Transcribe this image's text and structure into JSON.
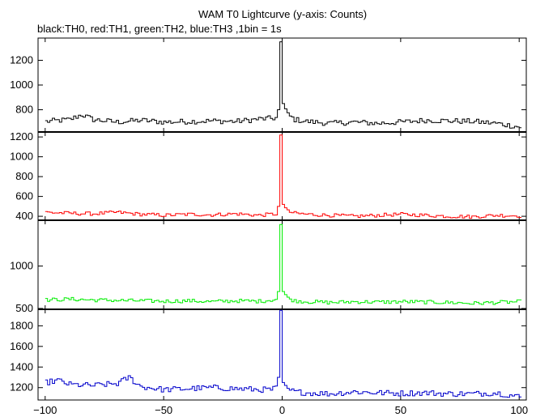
{
  "chart_data": {
    "type": "line",
    "title": "WAM T0 Lightcurve (y-axis: Counts)",
    "subtitle": "black:TH0, red:TH1, green:TH2, blue:TH3 ,1bin = 1s",
    "xlabel": "",
    "ylabel": "",
    "xlim": [
      -103,
      103
    ],
    "x_ticks": [
      -100,
      -50,
      0,
      50,
      100
    ],
    "grid": false,
    "legend": "none",
    "panels": [
      {
        "name": "TH0",
        "color": "#000000",
        "ylim": [
          620,
          1380
        ],
        "y_ticks": [
          800,
          1000,
          1200
        ],
        "baseline": 700,
        "noise": 22,
        "x": [
          -100,
          -90,
          -85,
          -80,
          -70,
          -60,
          -50,
          -40,
          -30,
          -20,
          -10,
          -5,
          -2.5,
          -2,
          -1,
          -0.5,
          0,
          1,
          2,
          5,
          10,
          20,
          30,
          40,
          50,
          60,
          70,
          80,
          90,
          100
        ],
        "y": [
          705,
          720,
          760,
          720,
          700,
          715,
          700,
          705,
          710,
          705,
          725,
          730,
          735,
          800,
          1350,
          1340,
          850,
          800,
          760,
          720,
          705,
          690,
          700,
          690,
          700,
          715,
          710,
          705,
          690,
          660
        ]
      },
      {
        "name": "TH1",
        "color": "#ff0000",
        "ylim": [
          360,
          1250
        ],
        "y_ticks": [
          400,
          600,
          800,
          1000,
          1200
        ],
        "baseline": 420,
        "noise": 18,
        "x": [
          -100,
          -90,
          -80,
          -70,
          -60,
          -50,
          -40,
          -30,
          -20,
          -10,
          -5,
          -2.5,
          -2,
          -1,
          -0.5,
          0,
          1,
          2,
          5,
          10,
          20,
          30,
          40,
          50,
          60,
          70,
          80,
          90,
          100
        ],
        "y": [
          440,
          430,
          425,
          440,
          420,
          410,
          420,
          415,
          425,
          410,
          420,
          425,
          500,
          1220,
          1230,
          520,
          480,
          450,
          430,
          420,
          410,
          400,
          410,
          420,
          410,
          400,
          395,
          410,
          405
        ]
      },
      {
        "name": "TH2",
        "color": "#00ee00",
        "ylim": [
          490,
          1540
        ],
        "y_ticks": [
          500,
          1000
        ],
        "baseline": 590,
        "noise": 22,
        "x": [
          -100,
          -90,
          -80,
          -70,
          -60,
          -50,
          -40,
          -30,
          -20,
          -10,
          -5,
          -2.5,
          -2,
          -1,
          -0.5,
          0,
          1,
          2,
          5,
          10,
          20,
          30,
          40,
          50,
          60,
          70,
          80,
          90,
          100
        ],
        "y": [
          600,
          610,
          600,
          595,
          590,
          585,
          590,
          580,
          590,
          585,
          600,
          610,
          700,
          1490,
          1480,
          700,
          660,
          620,
          590,
          580,
          570,
          580,
          575,
          580,
          575,
          570,
          560,
          570,
          580
        ]
      },
      {
        "name": "TH3",
        "color": "#0000cc",
        "ylim": [
          1080,
          1960
        ],
        "y_ticks": [
          1200,
          1400,
          1600,
          1800
        ],
        "baseline": 1180,
        "noise": 28,
        "x": [
          -100,
          -95,
          -90,
          -80,
          -70,
          -65,
          -60,
          -50,
          -40,
          -30,
          -20,
          -10,
          -5,
          -2.5,
          -2,
          -1,
          -0.5,
          0,
          1,
          2,
          5,
          10,
          20,
          30,
          40,
          50,
          60,
          70,
          80,
          90,
          100
        ],
        "y": [
          1250,
          1270,
          1230,
          1220,
          1240,
          1300,
          1210,
          1180,
          1190,
          1200,
          1190,
          1180,
          1180,
          1200,
          1300,
          1950,
          1940,
          1250,
          1200,
          1180,
          1160,
          1150,
          1140,
          1160,
          1150,
          1145,
          1150,
          1140,
          1140,
          1150,
          1110
        ]
      }
    ]
  }
}
